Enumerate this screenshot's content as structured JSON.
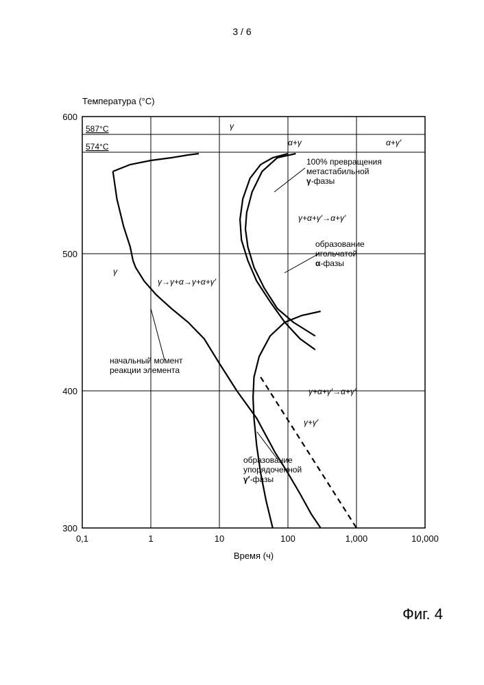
{
  "page_number": "3 / 6",
  "figure_label": "Фиг. 4",
  "axes": {
    "x": {
      "title": "Время (ч)",
      "scale": "log",
      "min": 0.1,
      "max": 10000,
      "ticks": [
        0.1,
        1,
        10,
        100,
        1000,
        10000
      ],
      "tick_labels": [
        "0,1",
        "1",
        "10",
        "100",
        "1,000",
        "10,000"
      ]
    },
    "y": {
      "title": "Температура (°C)",
      "scale": "linear",
      "min": 300,
      "max": 600,
      "ticks": [
        300,
        400,
        500,
        600
      ],
      "tick_labels": [
        "300",
        "400",
        "500",
        "600"
      ]
    }
  },
  "reference_lines": {
    "line1": {
      "value": 587,
      "label": "587°C"
    },
    "line2": {
      "value": 574,
      "label": "574°C"
    }
  },
  "curves": {
    "c_start": {
      "label": "начальный момент\nреакции элемента",
      "points": [
        [
          0.28,
          560
        ],
        [
          0.32,
          540
        ],
        [
          0.4,
          520
        ],
        [
          0.5,
          505
        ],
        [
          0.55,
          495
        ],
        [
          0.6,
          490
        ],
        [
          0.8,
          480
        ],
        [
          1.2,
          470
        ],
        [
          2,
          460
        ],
        [
          3.5,
          450
        ],
        [
          6,
          438
        ],
        [
          10,
          420
        ],
        [
          18,
          400
        ],
        [
          35,
          380
        ],
        [
          65,
          355
        ],
        [
          100,
          340
        ],
        [
          150,
          325
        ],
        [
          220,
          310
        ],
        [
          300,
          300
        ]
      ]
    },
    "c_start_alpha": {
      "label": "γ→γ+α→γ+α+γ′",
      "points": [
        [
          0.28,
          560
        ],
        [
          0.5,
          565
        ],
        [
          1.0,
          568
        ],
        [
          2,
          570
        ],
        [
          3.5,
          572
        ],
        [
          5,
          573
        ]
      ]
    },
    "c_meta": {
      "label": "100% превращения\nметастабильной\nγ-фазы",
      "points": [
        [
          100,
          573
        ],
        [
          60,
          570
        ],
        [
          40,
          565
        ],
        [
          28,
          555
        ],
        [
          22,
          540
        ],
        [
          20,
          525
        ],
        [
          21,
          510
        ],
        [
          26,
          495
        ],
        [
          35,
          480
        ],
        [
          55,
          465
        ],
        [
          90,
          450
        ],
        [
          150,
          438
        ],
        [
          250,
          430
        ]
      ]
    },
    "c_meta_label": {
      "text": "γ+α+γ′→α+γ′"
    },
    "c_needle": {
      "label": "образование\nигольчатой\nα-фазы",
      "points": [
        [
          250,
          440
        ],
        [
          120,
          450
        ],
        [
          70,
          460
        ],
        [
          45,
          475
        ],
        [
          32,
          490
        ],
        [
          26,
          505
        ],
        [
          24,
          518
        ],
        [
          25,
          530
        ],
        [
          30,
          545
        ],
        [
          42,
          560
        ],
        [
          70,
          570
        ],
        [
          130,
          573
        ]
      ]
    },
    "c_ordered": {
      "label": "образование\nупорядоченной\nγ′-фазы",
      "points": [
        [
          60,
          300
        ],
        [
          48,
          320
        ],
        [
          40,
          340
        ],
        [
          35,
          360
        ],
        [
          32,
          380
        ],
        [
          31,
          395
        ],
        [
          32,
          410
        ],
        [
          38,
          425
        ],
        [
          55,
          440
        ],
        [
          90,
          450
        ],
        [
          160,
          455
        ],
        [
          300,
          458
        ]
      ]
    },
    "c_ordered_label2": {
      "text": "γ+α+γ′→α+γ′"
    },
    "c_dashed": {
      "points": [
        [
          40,
          410
        ],
        [
          1000,
          300
        ]
      ]
    },
    "gamma_gammaprime": {
      "text": "γ+γ′"
    }
  },
  "region_labels": {
    "gamma_upper": "γ",
    "gamma_left": "γ",
    "alpha_gamma_top": "α+γ",
    "alpha_gamma_top2": "α+γ′"
  },
  "colors": {
    "line": "#000000",
    "background": "#ffffff"
  }
}
